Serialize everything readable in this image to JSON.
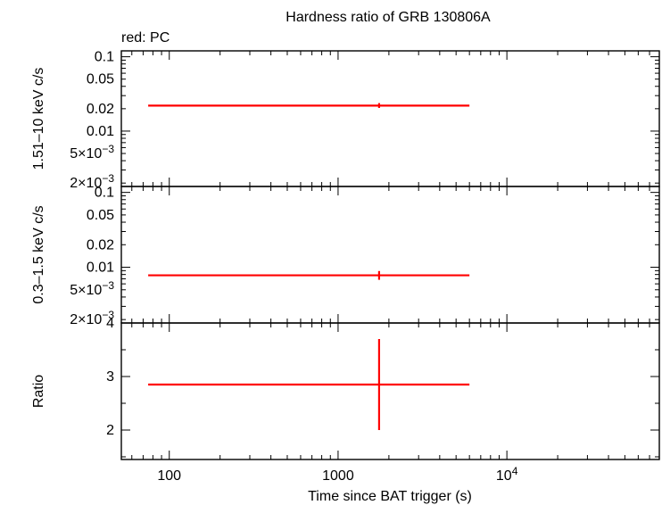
{
  "chart_data": {
    "type": "scatter",
    "title": "Hardness ratio of GRB 130806A",
    "subtitle": "red: PC",
    "xlabel": "Time since BAT trigger (s)",
    "xscale": "log",
    "xlim": [
      52,
      80000
    ],
    "xtick_labels": [
      {
        "value": 100,
        "label": "100"
      },
      {
        "value": 1000,
        "label": "1000"
      },
      {
        "value": 10000,
        "label": "10",
        "sup": "4"
      }
    ],
    "panels": [
      {
        "id": "hard",
        "ylabel": "1.51–10 keV c/s",
        "yscale": "log",
        "ylim": [
          0.0018,
          0.12
        ],
        "ytick_labels": [
          {
            "value": 0.1,
            "label": "0.1"
          },
          {
            "value": 0.05,
            "label": "0.05"
          },
          {
            "value": 0.02,
            "label": "0.02"
          },
          {
            "value": 0.01,
            "label": "0.01"
          },
          {
            "value": 0.005,
            "label": "5×10",
            "sup": "−3"
          },
          {
            "value": 0.002,
            "label": "2×10",
            "sup": "−3"
          }
        ],
        "series": [
          {
            "color": "#ff0000",
            "points": [
              {
                "x": 1750,
                "x_lo": 75,
                "x_hi": 6000,
                "y": 0.022,
                "y_lo": 0.0205,
                "y_hi": 0.0238
              }
            ]
          }
        ]
      },
      {
        "id": "soft",
        "ylabel": "0.3–1.5 keV c/s",
        "yscale": "log",
        "ylim": [
          0.0018,
          0.12
        ],
        "ytick_labels": [
          {
            "value": 0.1,
            "label": "0.1"
          },
          {
            "value": 0.05,
            "label": "0.05"
          },
          {
            "value": 0.02,
            "label": "0.02"
          },
          {
            "value": 0.01,
            "label": "0.01"
          },
          {
            "value": 0.005,
            "label": "5×10",
            "sup": "−3"
          },
          {
            "value": 0.002,
            "label": "2×10",
            "sup": "−3"
          }
        ],
        "series": [
          {
            "color": "#ff0000",
            "points": [
              {
                "x": 1750,
                "x_lo": 75,
                "x_hi": 6000,
                "y": 0.0078,
                "y_lo": 0.0068,
                "y_hi": 0.0089
              }
            ]
          }
        ]
      },
      {
        "id": "ratio",
        "ylabel": "Ratio",
        "yscale": "linear",
        "ylim": [
          1.45,
          4.0
        ],
        "ytick_labels": [
          {
            "value": 2,
            "label": "2"
          },
          {
            "value": 3,
            "label": "3"
          },
          {
            "value": 4,
            "label": "4"
          }
        ],
        "series": [
          {
            "color": "#ff0000",
            "points": [
              {
                "x": 1750,
                "x_lo": 75,
                "x_hi": 6000,
                "y": 2.85,
                "y_lo": 2.0,
                "y_hi": 3.7
              }
            ]
          }
        ]
      }
    ]
  }
}
